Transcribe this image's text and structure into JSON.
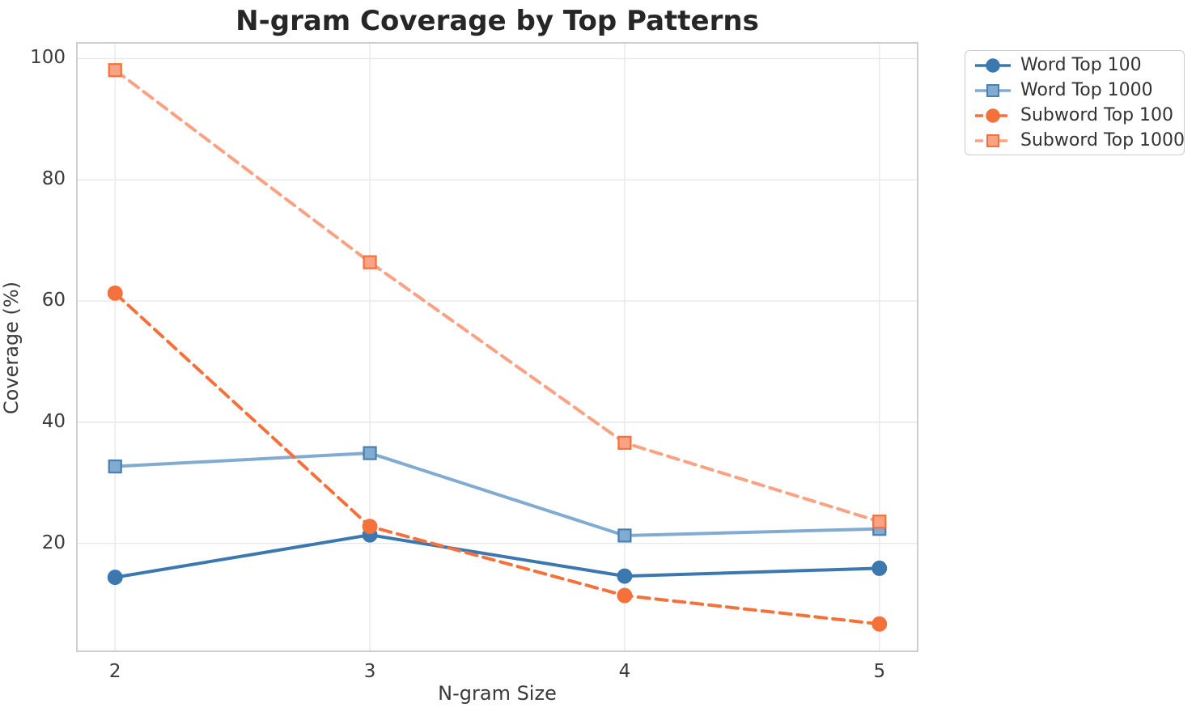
{
  "title": "N-gram Coverage by Top Patterns",
  "chart_data": {
    "type": "line",
    "title": "N-gram Coverage by Top Patterns",
    "xlabel": "N-gram Size",
    "ylabel": "Coverage (%)",
    "categories": [
      2,
      3,
      4,
      5
    ],
    "x_tick_labels": [
      "2",
      "3",
      "4",
      "5"
    ],
    "y_ticks": [
      20,
      40,
      60,
      80,
      100
    ],
    "y_tick_labels": [
      "20",
      "40",
      "60",
      "80",
      "100"
    ],
    "xlim": [
      1.85,
      5.15
    ],
    "ylim": [
      2.2,
      102.6
    ],
    "grid": true,
    "legend_position": "outside-right",
    "colors": {
      "word_top_100": "#3c78b0",
      "word_top_1000": "#82abd2",
      "subword_top_100": "#f4713c",
      "subword_top_1000": "#f9a284",
      "grid": "#e8e8e8",
      "spine": "#c9c9c9",
      "title_text": "#262626",
      "tick_text": "#3b3b3b"
    },
    "series": [
      {
        "name": "Word Top 100",
        "values": [
          14.4,
          21.4,
          14.6,
          15.9
        ],
        "color": "#3c78b0",
        "marker": "circle",
        "line": "solid",
        "marker_edge": "#3c78b0"
      },
      {
        "name": "Word Top 1000",
        "values": [
          32.7,
          34.9,
          21.3,
          22.4
        ],
        "color": "#82abd2",
        "marker": "square",
        "line": "solid",
        "marker_edge": "#4a7fae"
      },
      {
        "name": "Subword Top 100",
        "values": [
          61.3,
          22.8,
          11.4,
          6.7
        ],
        "color": "#f4713c",
        "marker": "circle",
        "line": "dashed",
        "marker_edge": "#f4713c"
      },
      {
        "name": "Subword Top 1000",
        "values": [
          98.1,
          66.4,
          36.6,
          23.6
        ],
        "color": "#f9a284",
        "marker": "square",
        "line": "dashed",
        "marker_edge": "#f4713c"
      }
    ]
  }
}
